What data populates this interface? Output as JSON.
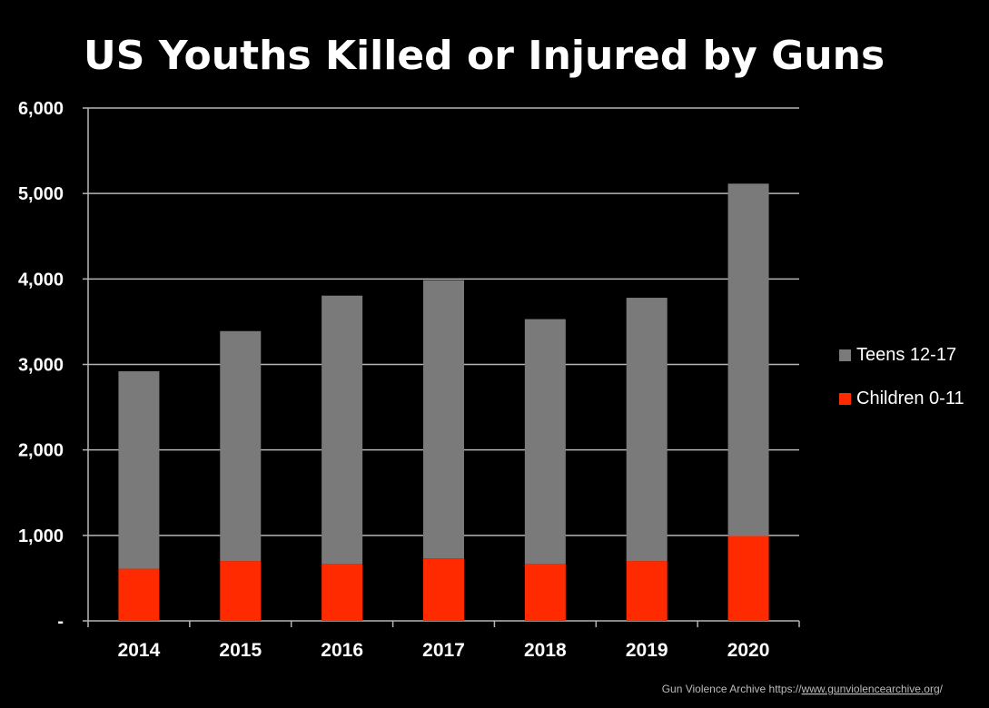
{
  "chart_data": {
    "type": "bar",
    "stacked": true,
    "title": "US Youths Killed or Injured by Guns",
    "xlabel": "",
    "ylabel": "",
    "categories": [
      "2014",
      "2015",
      "2016",
      "2017",
      "2018",
      "2019",
      "2020"
    ],
    "series": [
      {
        "name": "Children 0-11",
        "color": "#ff2a00",
        "values": [
          610,
          700,
          665,
          730,
          665,
          700,
          995
        ]
      },
      {
        "name": "Teens 12-17",
        "color": "#7a7a7a",
        "values": [
          2310,
          2690,
          3140,
          3255,
          2865,
          3080,
          4120
        ]
      }
    ],
    "ylim": [
      0,
      6000
    ],
    "yticks": [
      0,
      1000,
      2000,
      3000,
      4000,
      5000,
      6000
    ],
    "ytick_labels": [
      "-",
      "1,000",
      "2,000",
      "3,000",
      "4,000",
      "5,000",
      "6,000"
    ],
    "grid": true,
    "legend_placement": "right",
    "legend_order": [
      "Teens 12-17",
      "Children 0-11"
    ]
  },
  "source": {
    "text": "Gun Violence Archive  https://",
    "url": "www.gunviolencearchive.org",
    "tail": "/"
  }
}
